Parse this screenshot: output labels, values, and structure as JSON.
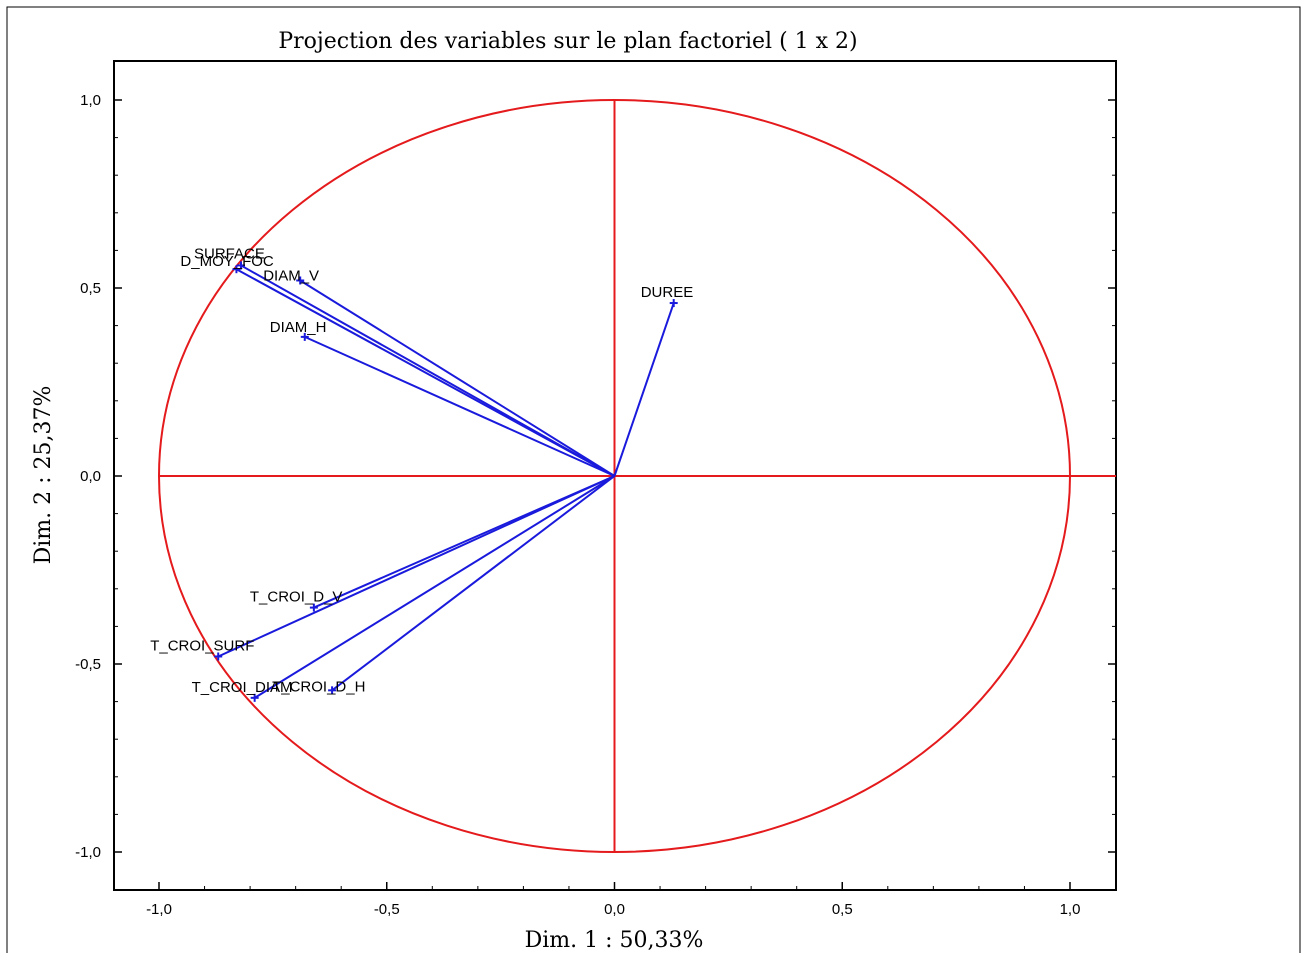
{
  "chart_data": {
    "type": "scatter",
    "subtype": "correlation-circle",
    "title": "Projection des variables sur le plan factoriel (  1 x    2)",
    "xlabel": "Dim. 1  : 50,33%",
    "ylabel": "Dim. 2  : 25,37%",
    "xlim": [
      -1.1,
      1.1
    ],
    "ylim": [
      -1.1,
      1.1
    ],
    "xticks": [
      "-1,0",
      "-0,5",
      "0,0",
      "0,5",
      "1,0"
    ],
    "yticks": [
      "1,0",
      "0,5",
      "0,0",
      "-0,5",
      "-1,0"
    ],
    "xtick_values": [
      -1.0,
      -0.5,
      0.0,
      0.5,
      1.0
    ],
    "ytick_values": [
      1.0,
      0.5,
      0.0,
      -0.5,
      -1.0
    ],
    "grid": false,
    "colors": {
      "circle": "#e41a1c",
      "vectors": "#1a1adc",
      "frame": "#000000"
    },
    "variables": [
      {
        "label": "SURFACE",
        "x": -0.82,
        "y": 0.56
      },
      {
        "label": "D_MOY_FOC",
        "x": -0.83,
        "y": 0.55
      },
      {
        "label": "DIAM_V",
        "x": -0.69,
        "y": 0.52
      },
      {
        "label": "DIAM_H",
        "x": -0.68,
        "y": 0.37
      },
      {
        "label": "DUREE",
        "x": 0.13,
        "y": 0.46
      },
      {
        "label": "T_CROI_D_V",
        "x": -0.66,
        "y": -0.35
      },
      {
        "label": "T_CROI_SURF",
        "x": -0.87,
        "y": -0.48
      },
      {
        "label": "T_CROI_D_H",
        "x": -0.62,
        "y": -0.57
      },
      {
        "label": "T_CROI_DIAM",
        "x": -0.79,
        "y": -0.59
      }
    ]
  }
}
